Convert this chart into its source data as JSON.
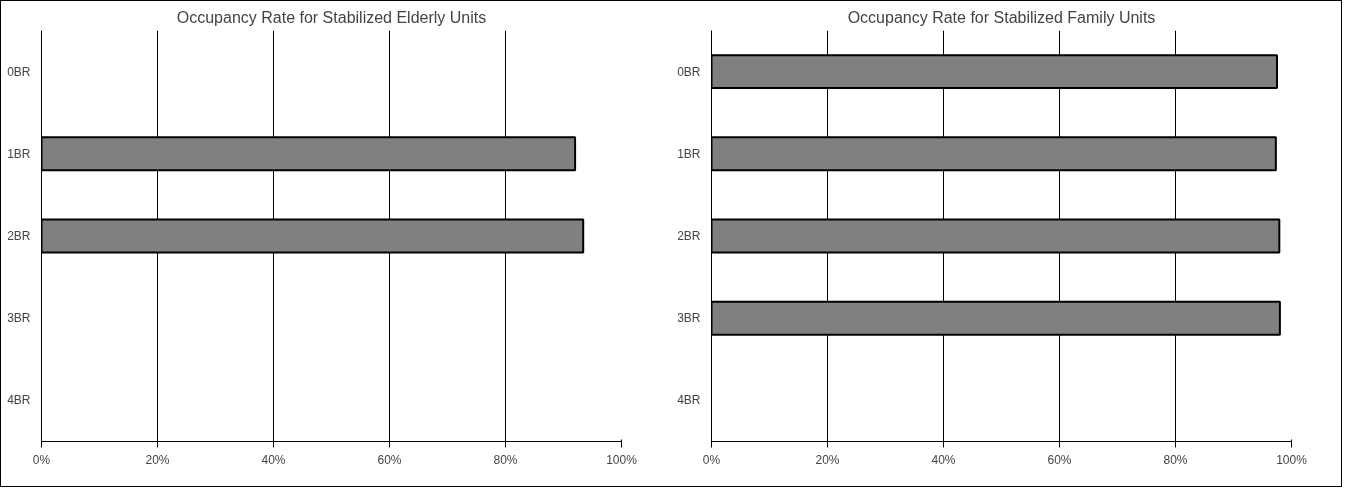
{
  "chart_data": [
    {
      "type": "bar",
      "orientation": "horizontal",
      "title": "Occupancy Rate for Stabilized Elderly Units",
      "categories": [
        "0BR",
        "1BR",
        "2BR",
        "3BR",
        "4BR"
      ],
      "values": [
        null,
        92.0,
        93.4,
        null,
        null
      ],
      "color": "#808080",
      "xlim": [
        0,
        100
      ],
      "xticks": [
        {
          "value": 0,
          "label": "0%"
        },
        {
          "value": 20,
          "label": "20%"
        },
        {
          "value": 40,
          "label": "40%"
        },
        {
          "value": 60,
          "label": "60%"
        },
        {
          "value": 80,
          "label": "80%"
        },
        {
          "value": 100,
          "label": "100%"
        }
      ],
      "grid": "x"
    },
    {
      "type": "bar",
      "orientation": "horizontal",
      "title": "Occupancy Rate for Stabilized Family Units",
      "categories": [
        "0BR",
        "1BR",
        "2BR",
        "3BR",
        "4BR"
      ],
      "values": [
        97.5,
        97.3,
        97.9,
        98.0,
        null
      ],
      "color": "#808080",
      "xlim": [
        0,
        100
      ],
      "xticks": [
        {
          "value": 0,
          "label": "0%"
        },
        {
          "value": 20,
          "label": "20%"
        },
        {
          "value": 40,
          "label": "40%"
        },
        {
          "value": 60,
          "label": "60%"
        },
        {
          "value": 80,
          "label": "80%"
        },
        {
          "value": 100,
          "label": "100%"
        }
      ],
      "grid": "x"
    }
  ]
}
